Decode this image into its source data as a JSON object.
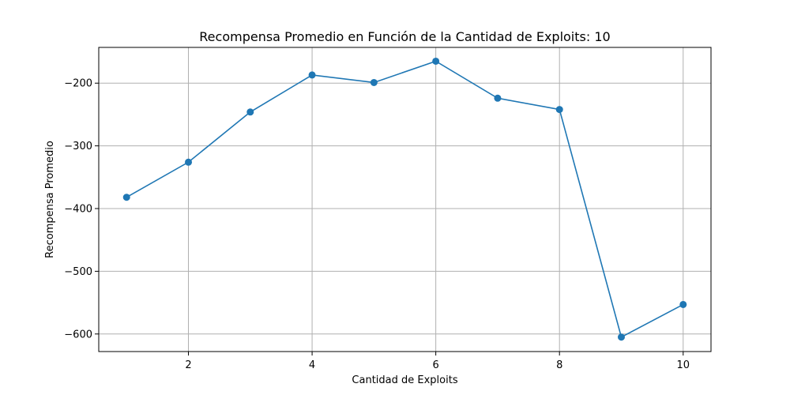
{
  "chart_data": {
    "type": "line",
    "title": "Recompensa Promedio en Función de la Cantidad de Exploits: 10",
    "xlabel": "Cantidad de Exploits",
    "ylabel": "Recompensa Promedio",
    "x": [
      1,
      2,
      3,
      4,
      5,
      6,
      7,
      8,
      9,
      10
    ],
    "series": [
      {
        "values": [
          -382,
          -326,
          -246,
          -187,
          -199,
          -165,
          -224,
          -242,
          -605,
          -553
        ],
        "color": "#1f77b4",
        "marker": "circle"
      }
    ],
    "xlim": [
      0.55,
      10.45
    ],
    "ylim": [
      -628,
      -143
    ],
    "xticks": [
      2,
      4,
      6,
      8,
      10
    ],
    "xtick_labels": [
      "2",
      "4",
      "6",
      "8",
      "10"
    ],
    "yticks": [
      -600,
      -500,
      -400,
      -300,
      -200
    ],
    "ytick_labels": [
      "−600",
      "−500",
      "−400",
      "−300",
      "−200"
    ],
    "grid": true
  }
}
